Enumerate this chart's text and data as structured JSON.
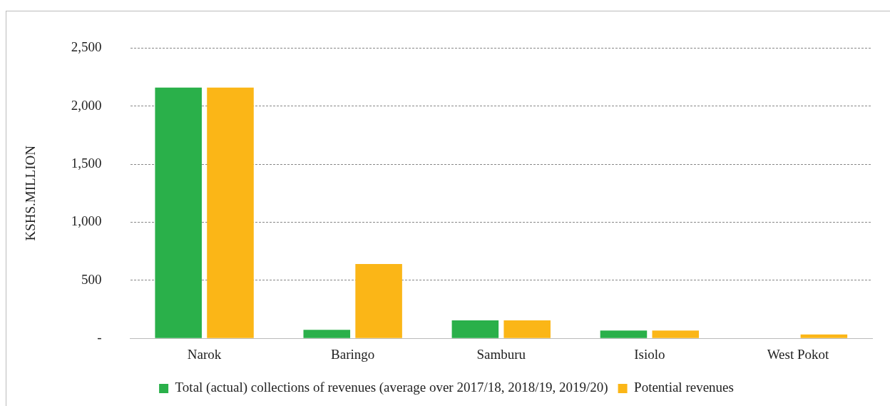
{
  "chart_data": {
    "type": "bar",
    "ylabel": "KSHS.MILLION",
    "categories": [
      "Narok",
      "Baringo",
      "Samburu",
      "Isiolo",
      "West Pokot"
    ],
    "series": [
      {
        "name": "Total (actual) collections of revenues (average over 2017/18, 2018/19, 2019/20)",
        "color": "#2ab04a",
        "values": [
          2160,
          74,
          155,
          68,
          0
        ]
      },
      {
        "name": "Potential revenues",
        "color": "#fbb617",
        "values": [
          2160,
          640,
          155,
          68,
          34
        ]
      }
    ],
    "ylim": [
      0,
      2500
    ],
    "yticks": [
      {
        "value": 0,
        "label": "-"
      },
      {
        "value": 500,
        "label": "500"
      },
      {
        "value": 1000,
        "label": "1,000"
      },
      {
        "value": 1500,
        "label": "1,500"
      },
      {
        "value": 2000,
        "label": "2,000"
      },
      {
        "value": 2500,
        "label": "2,500"
      }
    ],
    "grid": "y",
    "legend": "bottom"
  }
}
